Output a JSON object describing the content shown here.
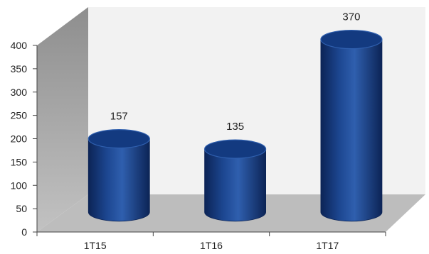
{
  "chart_data": {
    "type": "bar",
    "style": "3d-cylinder",
    "categories": [
      "1T15",
      "1T16",
      "1T17"
    ],
    "values": [
      157,
      135,
      370
    ],
    "data_labels": [
      "157",
      "135",
      "370"
    ],
    "ylim": [
      0,
      400
    ],
    "yticks": [
      "0",
      "50",
      "100",
      "150",
      "200",
      "250",
      "300",
      "350",
      "400"
    ],
    "title": "",
    "xlabel": "",
    "ylabel": "",
    "grid": false,
    "legend": "none"
  },
  "colors": {
    "bar_light": "#2f5fae",
    "bar_mid": "#1c4690",
    "bar_dark": "#0c2456",
    "bar_top": "#133a80",
    "back_wall": "#f2f2f2",
    "side_wall_top": "#8e8e8e",
    "side_wall_bottom": "#c2c2c2",
    "floor": "#bdbdbd",
    "axis": "#444444"
  }
}
